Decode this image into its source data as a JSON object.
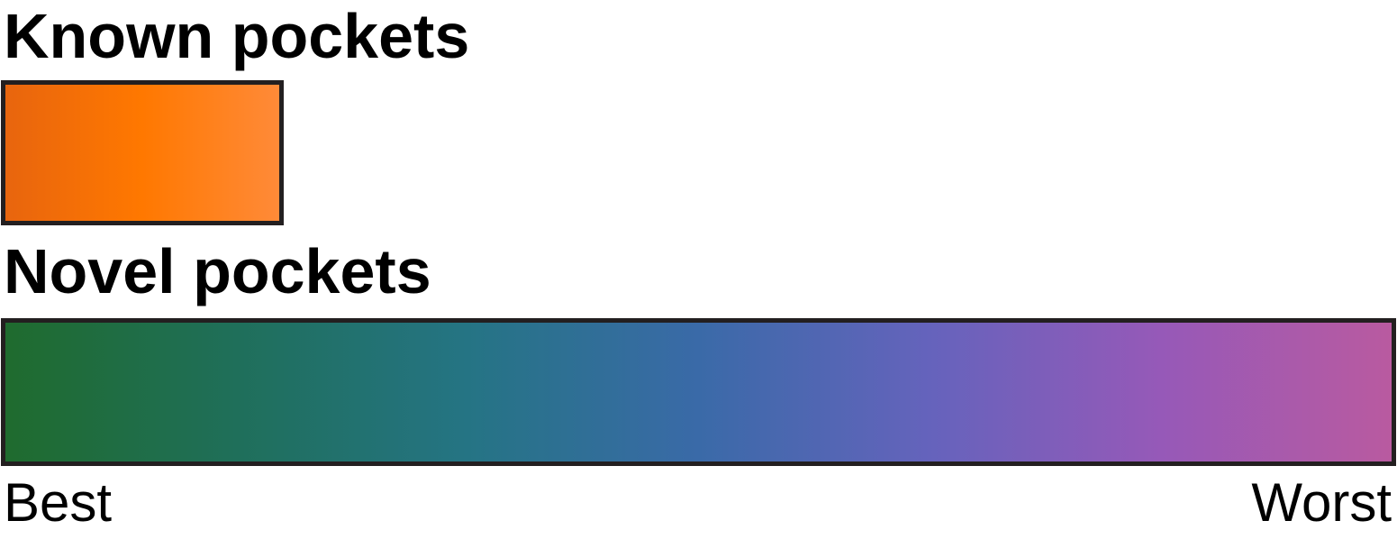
{
  "known": {
    "title": "Known pockets",
    "gradient_colors": [
      "#e8650e",
      "#ff7800",
      "#ff8a38"
    ]
  },
  "novel": {
    "title": "Novel pockets",
    "gradient_colors": [
      "#1f6b2e",
      "#1f6f5a",
      "#257484",
      "#3a6aa8",
      "#6563bc",
      "#9659b8",
      "#b95aa0"
    ]
  },
  "scale": {
    "start_label": "Best",
    "end_label": "Worst"
  },
  "border_color": "#231f20"
}
